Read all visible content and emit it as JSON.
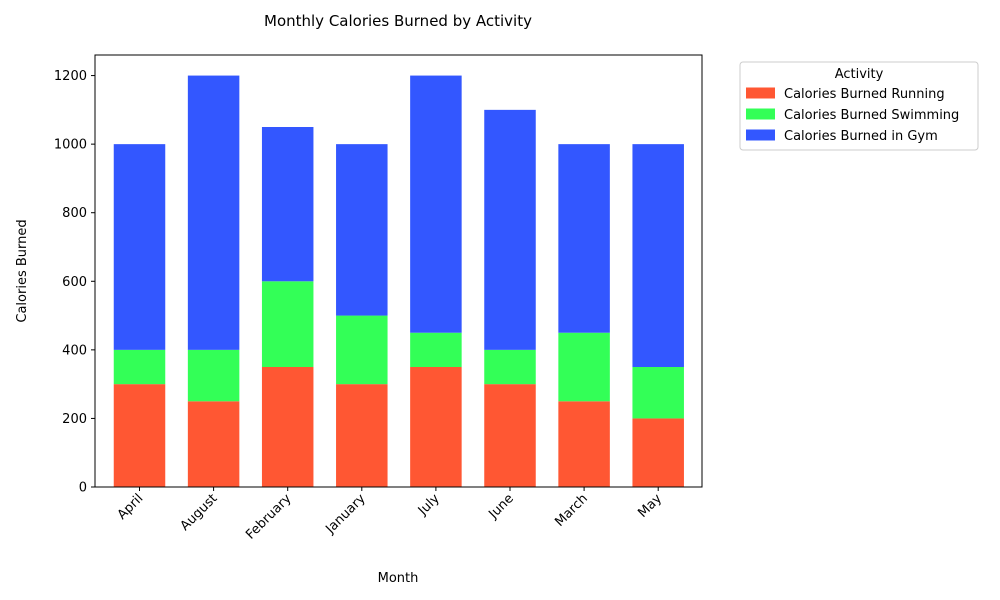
{
  "chart_data": {
    "type": "bar",
    "stacked": true,
    "title": "Monthly Calories Burned by Activity",
    "xlabel": "Month",
    "ylabel": "Calories Burned",
    "categories": [
      "April",
      "August",
      "February",
      "January",
      "July",
      "June",
      "March",
      "May"
    ],
    "series": [
      {
        "name": "Calories Burned Running",
        "color": "#ff5733",
        "values": [
          300,
          250,
          350,
          300,
          350,
          300,
          250,
          200
        ]
      },
      {
        "name": "Calories Burned Swimming",
        "color": "#33ff57",
        "values": [
          100,
          150,
          250,
          200,
          100,
          100,
          200,
          150
        ]
      },
      {
        "name": "Calories Burned in Gym",
        "color": "#3357ff",
        "values": [
          600,
          800,
          450,
          500,
          750,
          700,
          550,
          650
        ]
      }
    ],
    "ylim": [
      0,
      1260
    ],
    "yticks": [
      0,
      200,
      400,
      600,
      800,
      1000,
      1200
    ],
    "grid": false,
    "legend": {
      "title": "Activity",
      "placement": "outside-right"
    }
  }
}
